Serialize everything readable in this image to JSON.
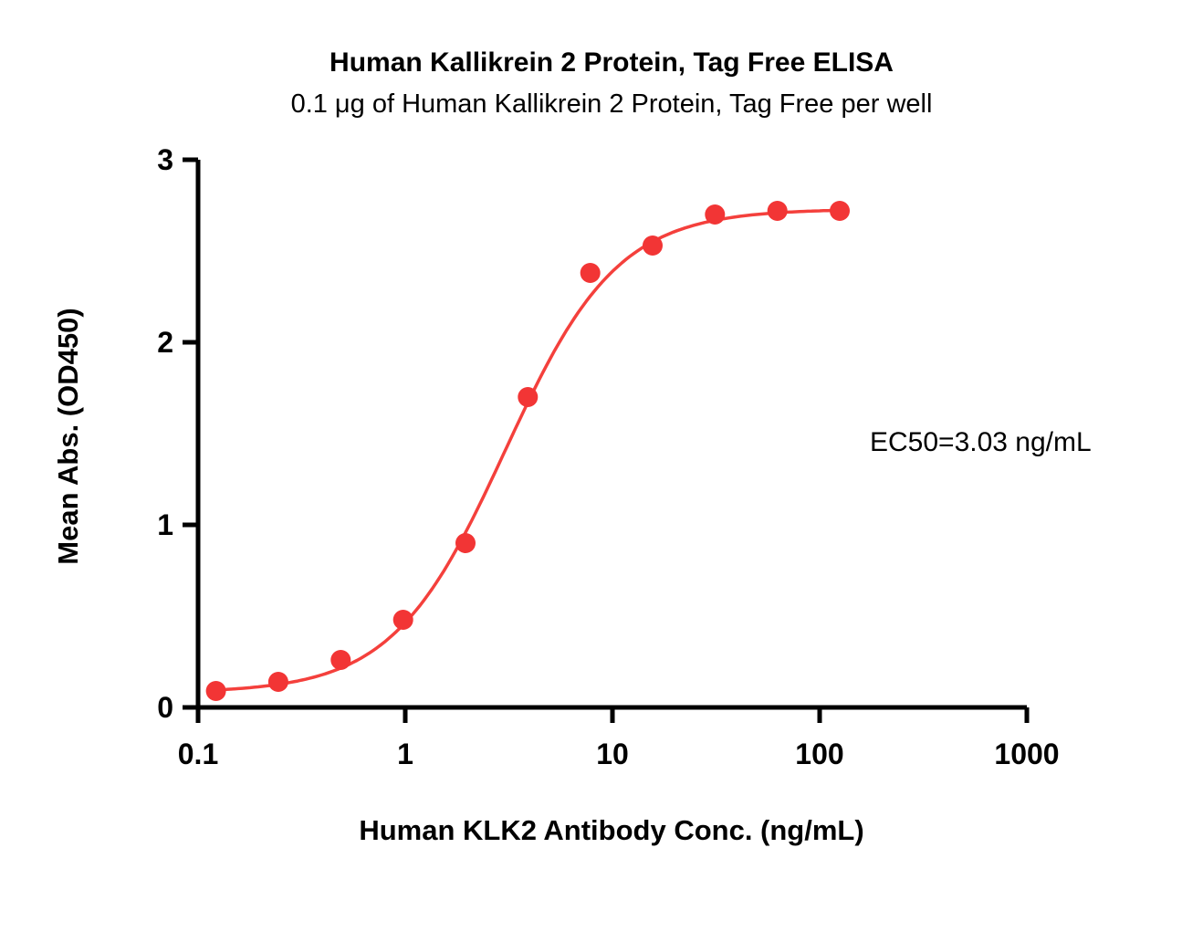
{
  "header": {
    "title": "Human Kallikrein 2 Protein, Tag Free ELISA",
    "subtitle": "0.1 μg of Human Kallikrein 2 Protein, Tag Free per well"
  },
  "chart_data": {
    "type": "scatter",
    "title": "Human Kallikrein 2 Protein, Tag Free ELISA",
    "subtitle": "0.1 μg of Human Kallikrein 2 Protein, Tag Free per well",
    "xlabel": "Human KLK2 Antibody Conc. (ng/mL)",
    "ylabel": "Mean Abs. (OD450)",
    "annotation": "EC50=3.03 ng/mL",
    "x_scale": "log10",
    "xlim": [
      0.1,
      1000
    ],
    "ylim": [
      0,
      3
    ],
    "x_ticks": [
      0.1,
      1,
      10,
      100,
      1000
    ],
    "x_tick_labels": [
      "0.1",
      "1",
      "10",
      "100",
      "1000"
    ],
    "y_ticks": [
      0,
      1,
      2,
      3
    ],
    "y_tick_labels": [
      "0",
      "1",
      "2",
      "3"
    ],
    "grid": false,
    "legend": "none",
    "series": [
      {
        "name": "Human KLK2 Antibody",
        "x": [
          0.122,
          0.244,
          0.488,
          0.977,
          1.953,
          3.906,
          7.813,
          15.625,
          31.25,
          62.5,
          125
        ],
        "y": [
          0.09,
          0.14,
          0.26,
          0.48,
          0.9,
          1.7,
          2.38,
          2.53,
          2.7,
          2.72,
          2.72
        ]
      }
    ],
    "fit": {
      "model": "4PL",
      "bottom": 0.08,
      "top": 2.73,
      "ec50": 3.03,
      "hill": 1.6,
      "x_start": 0.115,
      "x_end": 130
    },
    "colors": {
      "curve": "#F4403C",
      "marker": "#F23535",
      "axis": "#000000"
    }
  }
}
